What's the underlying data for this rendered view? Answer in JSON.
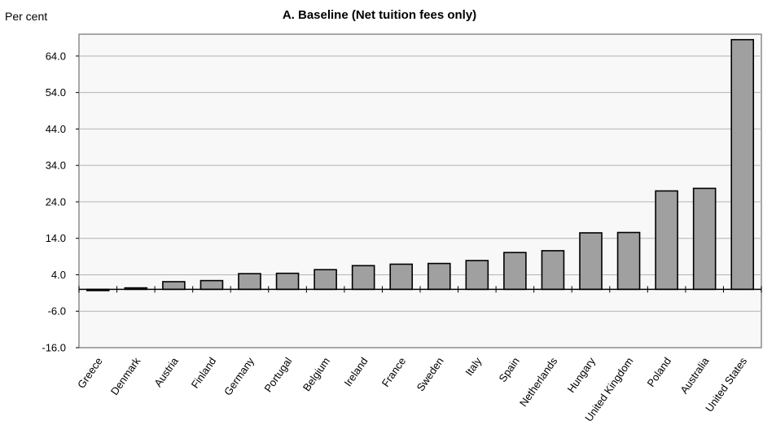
{
  "chart_data": {
    "type": "bar",
    "title": "A. Baseline (Net tuition fees only)",
    "ylabel": "Per cent",
    "xlabel": "",
    "ylim": [
      -16.0,
      70.0
    ],
    "yticks": [
      "64.0",
      "54.0",
      "44.0",
      "34.0",
      "24.0",
      "14.0",
      "4.0",
      "-6.0",
      "-16.0"
    ],
    "ytick_values": [
      64,
      54,
      44,
      34,
      24,
      14,
      4,
      -6,
      -16
    ],
    "grid": "horizontal",
    "legend": "none",
    "bar_color": "#a0a0a0",
    "plot_background": "#f8f8f8",
    "categories": [
      "Greece",
      "Denmark",
      "Austria",
      "Finland",
      "Germany",
      "Portugal",
      "Belgium",
      "Ireland",
      "France",
      "Sweden",
      "Italy",
      "Spain",
      "Netherlands",
      "Hungary",
      "United Kingdom",
      "Poland",
      "Australia",
      "United States"
    ],
    "values": [
      -0.3,
      0.4,
      2.1,
      2.4,
      4.3,
      4.4,
      5.4,
      6.5,
      6.9,
      7.1,
      7.9,
      10.1,
      10.6,
      15.5,
      15.6,
      27.0,
      27.7,
      68.5
    ]
  }
}
